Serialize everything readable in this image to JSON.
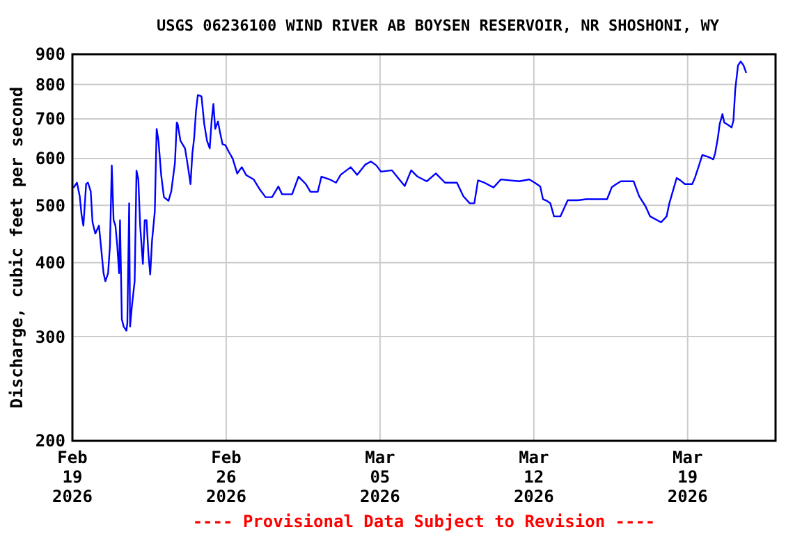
{
  "chart_data": {
    "type": "line",
    "title": "USGS 06236100 WIND RIVER AB BOYSEN RESERVOIR, NR SHOSHONI, WY",
    "ylabel": "Discharge, cubic feet per second",
    "annotations": [
      "---- Provisional Data Subject to Revision ----"
    ],
    "log": true,
    "grid": true,
    "marker": "none",
    "line_style": "solid",
    "xlim": [
      "2026-02-19",
      "2026-03-23"
    ],
    "xticks": [
      {
        "value": "2026-02-19",
        "label": "Feb\n19\n2026"
      },
      {
        "value": "2026-02-26",
        "label": "Feb\n26\n2026"
      },
      {
        "value": "2026-03-05",
        "label": "Mar\n05\n2026"
      },
      {
        "value": "2026-03-12",
        "label": "Mar\n12\n2026"
      },
      {
        "value": "2026-03-19",
        "label": "Mar\n19\n2026"
      }
    ],
    "ylim": [
      200,
      900
    ],
    "yticks": [
      200,
      300,
      400,
      500,
      600,
      700,
      800,
      900
    ],
    "series": [
      {
        "color": "#0000ff",
        "x": [
          "2026-02-19T01:00",
          "2026-02-19T05:00",
          "2026-02-19T08:00",
          "2026-02-19T10:00",
          "2026-02-19T12:00",
          "2026-02-19T15:00",
          "2026-02-19T17:00",
          "2026-02-19T20:00",
          "2026-02-19T22:00",
          "2026-02-20T01:00",
          "2026-02-20T05:00",
          "2026-02-20T08:00",
          "2026-02-20T10:00",
          "2026-02-20T12:00",
          "2026-02-20T15:00",
          "2026-02-20T17:00",
          "2026-02-20T19:00",
          "2026-02-20T21:00",
          "2026-02-20T23:00",
          "2026-02-21T01:00",
          "2026-02-21T03:00",
          "2026-02-21T04:00",
          "2026-02-21T06:00",
          "2026-02-21T08:00",
          "2026-02-21T11:00",
          "2026-02-21T12:00",
          "2026-02-21T14:00",
          "2026-02-21T15:00",
          "2026-02-21T17:00",
          "2026-02-21T20:00",
          "2026-02-21T22:00",
          "2026-02-22T00:00",
          "2026-02-22T02:00",
          "2026-02-22T05:00",
          "2026-02-22T07:00",
          "2026-02-22T09:00",
          "2026-02-22T11:00",
          "2026-02-22T13:00",
          "2026-02-22T15:00",
          "2026-02-22T18:00",
          "2026-02-22T20:00",
          "2026-02-22T22:00",
          "2026-02-23T01:00",
          "2026-02-23T04:00",
          "2026-02-23T09:00",
          "2026-02-23T12:00",
          "2026-02-23T16:00",
          "2026-02-23T18:00",
          "2026-02-23T19:00",
          "2026-02-23T22:00",
          "2026-02-24T03:00",
          "2026-02-24T06:00",
          "2026-02-24T09:00",
          "2026-02-24T11:00",
          "2026-02-24T13:00",
          "2026-02-24T15:00",
          "2026-02-24T17:00",
          "2026-02-24T21:00",
          "2026-02-25T00:00",
          "2026-02-25T03:00",
          "2026-02-25T06:00",
          "2026-02-25T08:00",
          "2026-02-25T10:00",
          "2026-02-25T12:00",
          "2026-02-25T15:00",
          "2026-02-25T17:00",
          "2026-02-25T20:00",
          "2026-02-25T23:00",
          "2026-02-26T03:00",
          "2026-02-26T07:00",
          "2026-02-26T12:00",
          "2026-02-26T17:00",
          "2026-02-26T22:00",
          "2026-02-27T06:00",
          "2026-02-27T13:00",
          "2026-02-27T19:00",
          "2026-02-28T02:00",
          "2026-02-28T09:00",
          "2026-02-28T13:00",
          "2026-03-01T00:00",
          "2026-03-01T07:00",
          "2026-03-01T15:00",
          "2026-03-01T20:00",
          "2026-03-02T04:00",
          "2026-03-02T08:00",
          "2026-03-02T17:00",
          "2026-03-03T00:00",
          "2026-03-03T05:00",
          "2026-03-03T16:00",
          "2026-03-03T23:00",
          "2026-03-04T08:00",
          "2026-03-04T14:00",
          "2026-03-04T20:00",
          "2026-03-05T01:00",
          "2026-03-05T13:00",
          "2026-03-05T21:00",
          "2026-03-06T03:00",
          "2026-03-06T10:00",
          "2026-03-06T17:00",
          "2026-03-07T03:00",
          "2026-03-07T13:00",
          "2026-03-07T23:00",
          "2026-03-08T12:00",
          "2026-03-08T19:00",
          "2026-03-09T02:00",
          "2026-03-09T07:00",
          "2026-03-09T11:00",
          "2026-03-09T18:00",
          "2026-03-10T04:00",
          "2026-03-10T12:00",
          "2026-03-10T22:00",
          "2026-03-11T08:00",
          "2026-03-11T19:00",
          "2026-03-12T01:00",
          "2026-03-12T07:00",
          "2026-03-12T10:00",
          "2026-03-12T14:00",
          "2026-03-12T18:00",
          "2026-03-12T22:00",
          "2026-03-13T05:00",
          "2026-03-13T09:00",
          "2026-03-13T13:00",
          "2026-03-14T00:00",
          "2026-03-14T09:00",
          "2026-03-15T08:00",
          "2026-03-15T13:00",
          "2026-03-15T18:00",
          "2026-03-15T23:00",
          "2026-03-16T13:00",
          "2026-03-16T19:00",
          "2026-03-17T02:00",
          "2026-03-17T07:00",
          "2026-03-17T19:00",
          "2026-03-18T01:00",
          "2026-03-18T04:00",
          "2026-03-18T09:00",
          "2026-03-18T12:00",
          "2026-03-18T16:00",
          "2026-03-18T21:00",
          "2026-03-19T05:00",
          "2026-03-19T08:00",
          "2026-03-19T13:00",
          "2026-03-19T16:00",
          "2026-03-19T22:00",
          "2026-03-20T04:00",
          "2026-03-20T06:00",
          "2026-03-20T09:00",
          "2026-03-20T11:00",
          "2026-03-20T14:00",
          "2026-03-20T16:00",
          "2026-03-20T20:00",
          "2026-03-21T00:00",
          "2026-03-21T02:00",
          "2026-03-21T04:00",
          "2026-03-21T07:00",
          "2026-03-21T10:00",
          "2026-03-21T13:00",
          "2026-03-21T16:00"
        ],
        "values": [
          535,
          546,
          518,
          482,
          462,
          543,
          546,
          528,
          468,
          448,
          462,
          414,
          384,
          372,
          384,
          427,
          584,
          472,
          462,
          427,
          384,
          472,
          321,
          312,
          307,
          316,
          504,
          312,
          338,
          372,
          572,
          553,
          462,
          398,
          472,
          472,
          414,
          382,
          436,
          488,
          673,
          643,
          562,
          516,
          509,
          528,
          590,
          690,
          686,
          643,
          624,
          584,
          543,
          611,
          650,
          722,
          768,
          764,
          686,
          643,
          624,
          693,
          742,
          673,
          693,
          667,
          634,
          632,
          615,
          600,
          566,
          580,
          562,
          553,
          531,
          516,
          516,
          538,
          522,
          522,
          559,
          543,
          527,
          527,
          559,
          553,
          546,
          563,
          580,
          563,
          586,
          593,
          584,
          570,
          573,
          553,
          539,
          573,
          559,
          549,
          566,
          546,
          546,
          518,
          504,
          504,
          551,
          546,
          536,
          553,
          551,
          549,
          553,
          546,
          538,
          512,
          509,
          504,
          479,
          479,
          494,
          510,
          510,
          512,
          512,
          536,
          543,
          549,
          549,
          518,
          498,
          479,
          468,
          479,
          504,
          536,
          556,
          551,
          543,
          543,
          557,
          588,
          608,
          604,
          598,
          612,
          650,
          686,
          713,
          690,
          684,
          677,
          695,
          785,
          862,
          875,
          862,
          837
        ]
      }
    ]
  }
}
